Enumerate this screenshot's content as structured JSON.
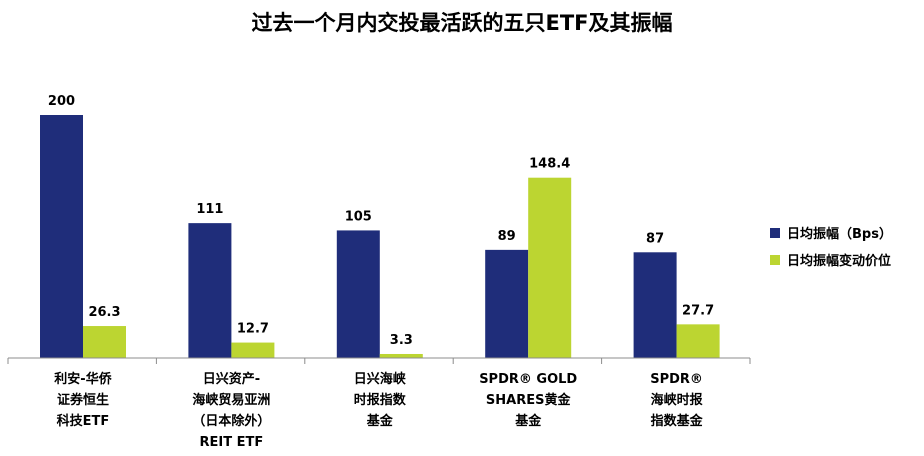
{
  "chart_data": {
    "type": "bar",
    "title": "过去一个月内交投最活跃的五只ETF及其振幅",
    "categories": [
      [
        "利安-华侨",
        "证券恒生",
        "科技ETF"
      ],
      [
        "日兴资产-",
        "海峡贸易亚洲",
        "（日本除外）",
        "REIT ETF"
      ],
      [
        "日兴海峡",
        "时报指数",
        "基金"
      ],
      [
        "SPDR® GOLD",
        "SHARES黄金",
        "基金"
      ],
      [
        "SPDR®",
        "海峡时报",
        "指数基金"
      ]
    ],
    "series": [
      {
        "name": "日均振幅（Bps）",
        "color": "#1f2d7a",
        "values": [
          200,
          111,
          105,
          89,
          87
        ],
        "labels": [
          "200",
          "111",
          "105",
          "89",
          "87"
        ]
      },
      {
        "name": "日均振幅变动价位",
        "color": "#bcd531",
        "values": [
          26.3,
          12.7,
          3.3,
          148.4,
          27.7
        ],
        "labels": [
          "26.3",
          "12.7",
          "3.3",
          "148.4",
          "27.7"
        ]
      }
    ],
    "ylim": [
      0,
      200
    ],
    "grid": false,
    "legend_position": "right"
  }
}
